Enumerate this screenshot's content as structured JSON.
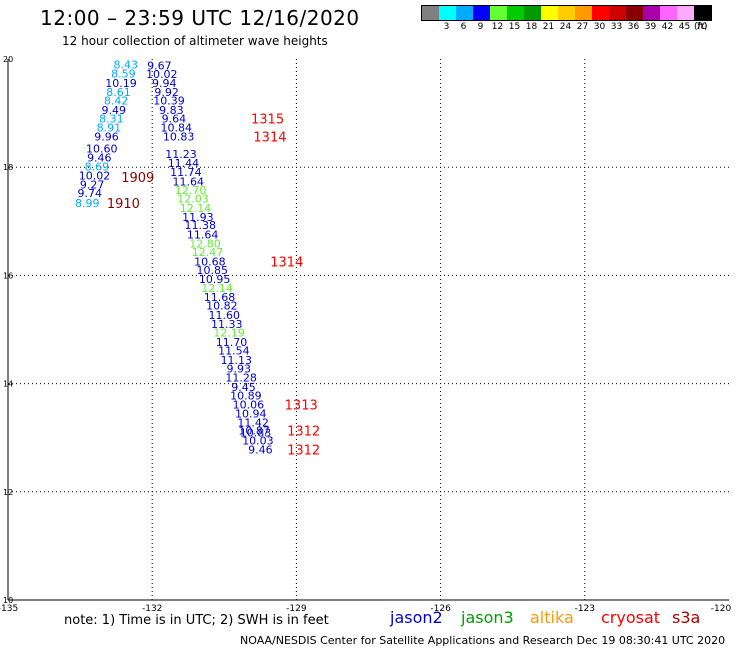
{
  "title": "12:00 – 23:59 UTC 12/16/2020",
  "subtitle": "12 hour collection of altimeter wave heights",
  "note": "note: 1) Time is in UTC; 2) SWH is in feet",
  "credit": "NOAA/NESDIS Center for Satellite Applications and Research     Dec 19 08:30:41 UTC 2020",
  "legend": [
    {
      "label": "jason2",
      "color": "#0000cc"
    },
    {
      "label": "jason3",
      "color": "#00a000"
    },
    {
      "label": "altika",
      "color": "#ff9900"
    },
    {
      "label": "cryosat",
      "color": "#ff0000"
    },
    {
      "label": "s3a",
      "color": "#aa0000"
    }
  ],
  "colorbar": {
    "unit": "(ft)",
    "colors": [
      "#808080",
      "#00ffff",
      "#00aaff",
      "#0000ff",
      "#66ff33",
      "#00cc00",
      "#009900",
      "#ffff00",
      "#ffcc00",
      "#ff9900",
      "#ff0000",
      "#cc0000",
      "#880000",
      "#aa00aa",
      "#ff66ff",
      "#ffaaff",
      "#000000"
    ],
    "labels": [
      "",
      "3",
      "6",
      "9",
      "12",
      "15",
      "18",
      "21",
      "24",
      "27",
      "30",
      "33",
      "36",
      "39",
      "42",
      "45",
      "70"
    ]
  },
  "chart_data": {
    "type": "scatter",
    "xlim": [
      -135,
      -120
    ],
    "ylim": [
      10,
      20
    ],
    "xticks": [
      "-135",
      "-132",
      "-129",
      "-126",
      "-123",
      "-120"
    ],
    "yticks": [
      "20",
      "18",
      "16",
      "14",
      "12",
      "10"
    ],
    "grid": true,
    "points": [
      {
        "x": -132.55,
        "y": 19.9,
        "v": "8.43",
        "c": "#00aaff"
      },
      {
        "x": -132.6,
        "y": 19.73,
        "v": "8.59",
        "c": "#00aaff"
      },
      {
        "x": -132.65,
        "y": 19.56,
        "v": "10.19",
        "c": "#0000cc"
      },
      {
        "x": -132.7,
        "y": 19.39,
        "v": "8.61",
        "c": "#00aaff"
      },
      {
        "x": -132.75,
        "y": 19.23,
        "v": "8.42",
        "c": "#00aaff"
      },
      {
        "x": -132.8,
        "y": 19.06,
        "v": "9.49",
        "c": "#0000cc"
      },
      {
        "x": -132.85,
        "y": 18.9,
        "v": "8.31",
        "c": "#00aaff"
      },
      {
        "x": -132.9,
        "y": 18.73,
        "v": "8.91",
        "c": "#00aaff"
      },
      {
        "x": -132.95,
        "y": 18.57,
        "v": "9.96",
        "c": "#0000cc"
      },
      {
        "x": -133.05,
        "y": 18.35,
        "v": "10.60",
        "c": "#0000cc"
      },
      {
        "x": -133.1,
        "y": 18.18,
        "v": "9.46",
        "c": "#0000cc"
      },
      {
        "x": -133.15,
        "y": 18.01,
        "v": "8.69",
        "c": "#00aaff"
      },
      {
        "x": -133.2,
        "y": 17.85,
        "v": "10.02",
        "c": "#0000cc"
      },
      {
        "x": -133.25,
        "y": 17.68,
        "v": "9.27",
        "c": "#0000cc"
      },
      {
        "x": -133.3,
        "y": 17.52,
        "v": "9.74",
        "c": "#0000cc"
      },
      {
        "x": -133.35,
        "y": 17.34,
        "v": "8.99",
        "c": "#00aaff"
      },
      {
        "x": -131.85,
        "y": 19.88,
        "v": "9.67",
        "c": "#0000cc"
      },
      {
        "x": -131.8,
        "y": 19.72,
        "v": "10.02",
        "c": "#0000cc"
      },
      {
        "x": -131.75,
        "y": 19.56,
        "v": "9.94",
        "c": "#0000cc"
      },
      {
        "x": -131.7,
        "y": 19.39,
        "v": "9.92",
        "c": "#0000cc"
      },
      {
        "x": -131.65,
        "y": 19.23,
        "v": "10.39",
        "c": "#0000cc"
      },
      {
        "x": -131.6,
        "y": 19.06,
        "v": "9.83",
        "c": "#0000cc"
      },
      {
        "x": -131.55,
        "y": 18.9,
        "v": "9.64",
        "c": "#0000cc"
      },
      {
        "x": -131.5,
        "y": 18.73,
        "v": "10.84",
        "c": "#0000cc"
      },
      {
        "x": -131.45,
        "y": 18.57,
        "v": "10.83",
        "c": "#0000cc"
      },
      {
        "x": -131.4,
        "y": 18.24,
        "v": "11.23",
        "c": "#0000cc"
      },
      {
        "x": -131.35,
        "y": 18.08,
        "v": "11.44",
        "c": "#0000cc"
      },
      {
        "x": -131.3,
        "y": 17.91,
        "v": "11.74",
        "c": "#0000cc"
      },
      {
        "x": -131.25,
        "y": 17.74,
        "v": "11.64",
        "c": "#0000cc"
      },
      {
        "x": -131.2,
        "y": 17.58,
        "v": "12.70",
        "c": "#66ee33"
      },
      {
        "x": -131.15,
        "y": 17.42,
        "v": "12.03",
        "c": "#66ee33"
      },
      {
        "x": -131.1,
        "y": 17.25,
        "v": "12.14",
        "c": "#66ee33"
      },
      {
        "x": -131.05,
        "y": 17.08,
        "v": "11.93",
        "c": "#0000cc"
      },
      {
        "x": -131.0,
        "y": 16.93,
        "v": "11.38",
        "c": "#0000cc"
      },
      {
        "x": -130.95,
        "y": 16.76,
        "v": "11.64",
        "c": "#0000cc"
      },
      {
        "x": -130.9,
        "y": 16.59,
        "v": "12.80",
        "c": "#66ee33"
      },
      {
        "x": -130.85,
        "y": 16.43,
        "v": "12.47",
        "c": "#66ee33"
      },
      {
        "x": -130.8,
        "y": 16.26,
        "v": "10.68",
        "c": "#0000cc"
      },
      {
        "x": -130.75,
        "y": 16.1,
        "v": "10.85",
        "c": "#0000cc"
      },
      {
        "x": -130.7,
        "y": 15.93,
        "v": "10.95",
        "c": "#0000cc"
      },
      {
        "x": -130.65,
        "y": 15.77,
        "v": "12.14",
        "c": "#66ee33"
      },
      {
        "x": -130.6,
        "y": 15.6,
        "v": "11.68",
        "c": "#0000cc"
      },
      {
        "x": -130.55,
        "y": 15.44,
        "v": "10.82",
        "c": "#0000cc"
      },
      {
        "x": -130.5,
        "y": 15.27,
        "v": "11.60",
        "c": "#0000cc"
      },
      {
        "x": -130.45,
        "y": 15.1,
        "v": "11.33",
        "c": "#0000cc"
      },
      {
        "x": -130.4,
        "y": 14.94,
        "v": "12.19",
        "c": "#66ee33"
      },
      {
        "x": -130.35,
        "y": 14.77,
        "v": "11.70",
        "c": "#0000cc"
      },
      {
        "x": -130.3,
        "y": 14.61,
        "v": "11.54",
        "c": "#0000cc"
      },
      {
        "x": -130.25,
        "y": 14.44,
        "v": "11.13",
        "c": "#0000cc"
      },
      {
        "x": -130.2,
        "y": 14.28,
        "v": "9.93",
        "c": "#0000cc"
      },
      {
        "x": -130.15,
        "y": 14.11,
        "v": "11.28",
        "c": "#0000cc"
      },
      {
        "x": -130.1,
        "y": 13.94,
        "v": "9.45",
        "c": "#0000cc"
      },
      {
        "x": -130.05,
        "y": 13.78,
        "v": "10.89",
        "c": "#0000cc"
      },
      {
        "x": -130.0,
        "y": 13.61,
        "v": "10.06",
        "c": "#0000cc"
      },
      {
        "x": -129.95,
        "y": 13.45,
        "v": "10.94",
        "c": "#0000cc"
      },
      {
        "x": -129.9,
        "y": 13.28,
        "v": "11.42",
        "c": "#0000cc"
      },
      {
        "x": -129.88,
        "y": 13.13,
        "v": "10.87",
        "c": "#0000cc"
      },
      {
        "x": -129.85,
        "y": 13.1,
        "v": "10.83",
        "c": "#0000cc"
      },
      {
        "x": -129.8,
        "y": 12.95,
        "v": "10.03",
        "c": "#0000cc"
      },
      {
        "x": -129.75,
        "y": 12.78,
        "v": "9.46",
        "c": "#0000cc"
      }
    ],
    "passes": [
      {
        "x": -129.6,
        "y": 18.9,
        "label": "1315",
        "c": "#ff0000"
      },
      {
        "x": -129.55,
        "y": 18.57,
        "label": "1314",
        "c": "#ff0000"
      },
      {
        "x": -132.3,
        "y": 17.82,
        "label": "1909",
        "c": "#880000"
      },
      {
        "x": -132.6,
        "y": 17.34,
        "label": "1910",
        "c": "#880000"
      },
      {
        "x": -129.2,
        "y": 16.26,
        "label": "1314",
        "c": "#ff0000"
      },
      {
        "x": -128.9,
        "y": 13.61,
        "label": "1313",
        "c": "#ff0000"
      },
      {
        "x": -128.85,
        "y": 13.13,
        "label": "1312",
        "c": "#ff0000"
      },
      {
        "x": -128.85,
        "y": 12.78,
        "label": "1312",
        "c": "#ff0000"
      }
    ]
  }
}
